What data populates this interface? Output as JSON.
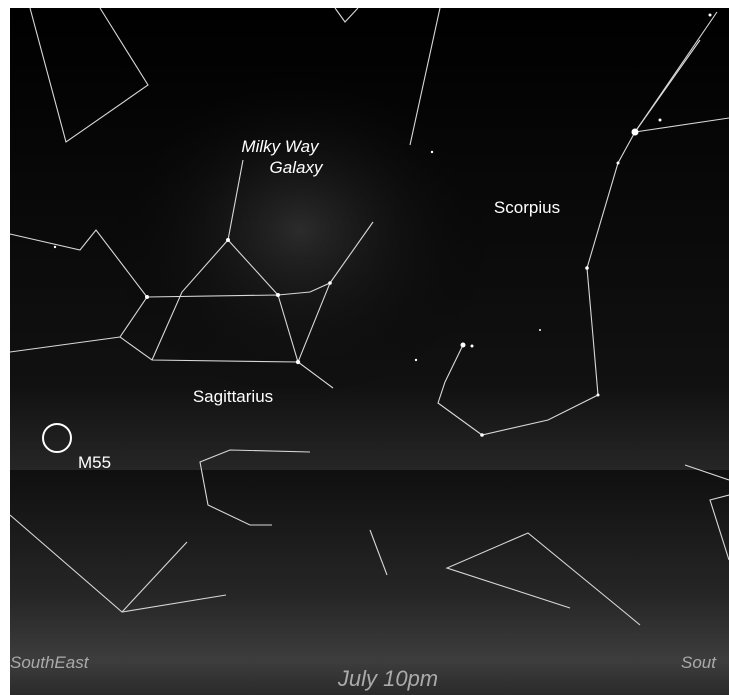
{
  "labels": {
    "milky_way": [
      "Milky Way",
      "Galaxy"
    ],
    "scorpius": "Scorpius",
    "sagittarius": "Sagittarius",
    "cluster": "M55"
  },
  "footer": {
    "left": "SouthEast",
    "center": "July 10pm",
    "right": "Sout"
  }
}
